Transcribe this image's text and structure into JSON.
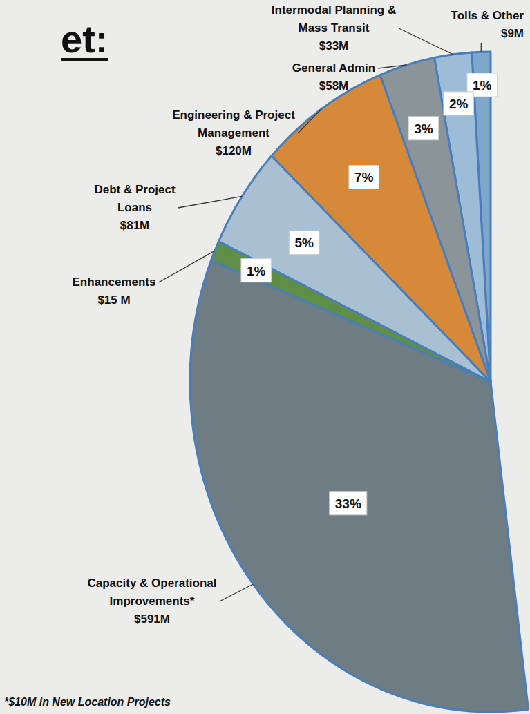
{
  "chart_data": {
    "type": "pie",
    "title": "et:",
    "categories": [
      "Tolls & Other",
      "Intermodal Planning & Mass Transit",
      "General Admin",
      "Engineering & Project Management",
      "Debt & Project Loans",
      "Enhancements",
      "Capacity & Operational Improvements*"
    ],
    "values": [
      1,
      2,
      3,
      7,
      5,
      1,
      33
    ],
    "value_labels": [
      "1%",
      "2%",
      "3%",
      "7%",
      "5%",
      "1%",
      "33%"
    ],
    "amount_labels": [
      "$9M",
      "$33M",
      "$58M",
      "$120M",
      "$81M",
      "$15 M",
      "$591M"
    ],
    "colors": [
      "#7fa7c9",
      "#9dbcd8",
      "#8a9499",
      "#d7893a",
      "#a9c0d3",
      "#5f8f46",
      "#6e7c84"
    ],
    "data_labels": true,
    "annotations": [
      "*$10M in New Location Projects"
    ]
  }
}
